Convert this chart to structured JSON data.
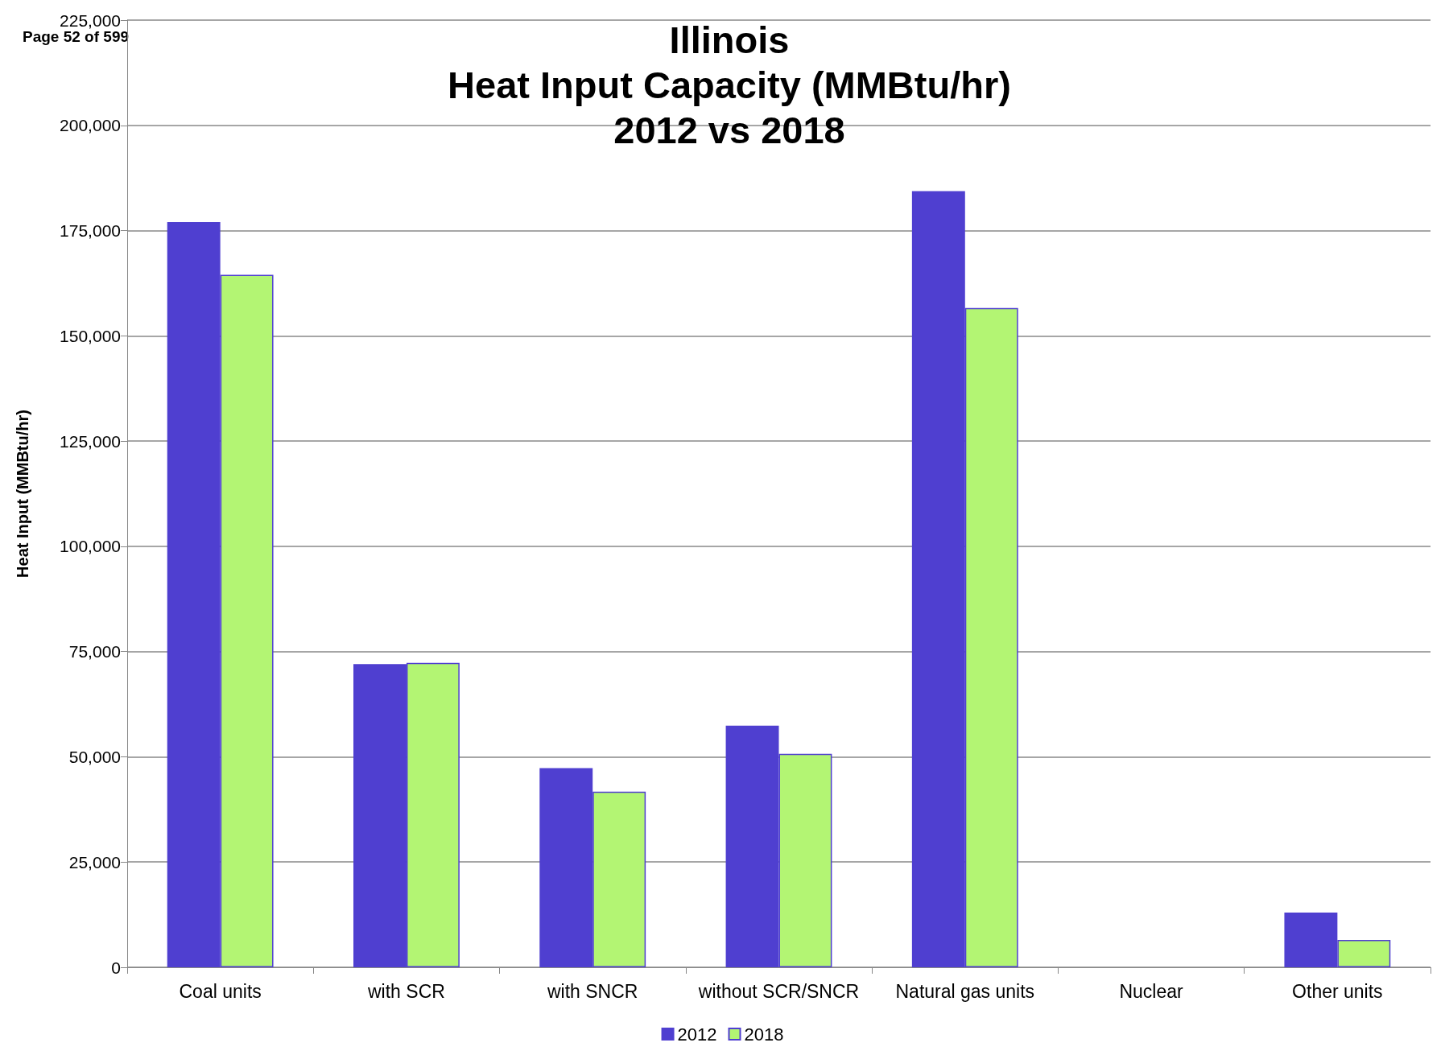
{
  "chart_data": {
    "type": "bar",
    "title": "Illinois\nHeat Input Capacity (MMBtu/hr)\n2012 vs 2018",
    "ylabel": "Heat Input (MMBtu/hr)",
    "annotations": [
      "Page 52 of 599"
    ],
    "categories": [
      "Coal units",
      "with SCR",
      "with SNCR",
      "without SCR/SNCR",
      "Natural gas units",
      "Nuclear",
      "Other units"
    ],
    "series": [
      {
        "name": "2012",
        "color": "#4f3fd0",
        "values": [
          177000,
          72000,
          47300,
          57400,
          184400,
          0,
          13000
        ]
      },
      {
        "name": "2018",
        "color": "#b3f573",
        "values": [
          164500,
          72300,
          41700,
          50700,
          156600,
          0,
          6500
        ]
      }
    ],
    "ylim": [
      0,
      225000
    ],
    "yticks": [
      0,
      {
        "value": 25000,
        "label": "25,000"
      },
      {
        "value": 50000,
        "label": "50,000"
      },
      {
        "value": 75000,
        "label": "75,000"
      },
      {
        "value": 100000,
        "label": "100,000"
      },
      {
        "value": 125000,
        "label": "125,000"
      },
      {
        "value": 150000,
        "label": "150,000"
      },
      {
        "value": 175000,
        "label": "175,000"
      },
      {
        "value": 200000,
        "label": "200,000"
      },
      {
        "value": 225000,
        "label": "225,000"
      }
    ],
    "grid": "y",
    "legend": "bottom"
  }
}
